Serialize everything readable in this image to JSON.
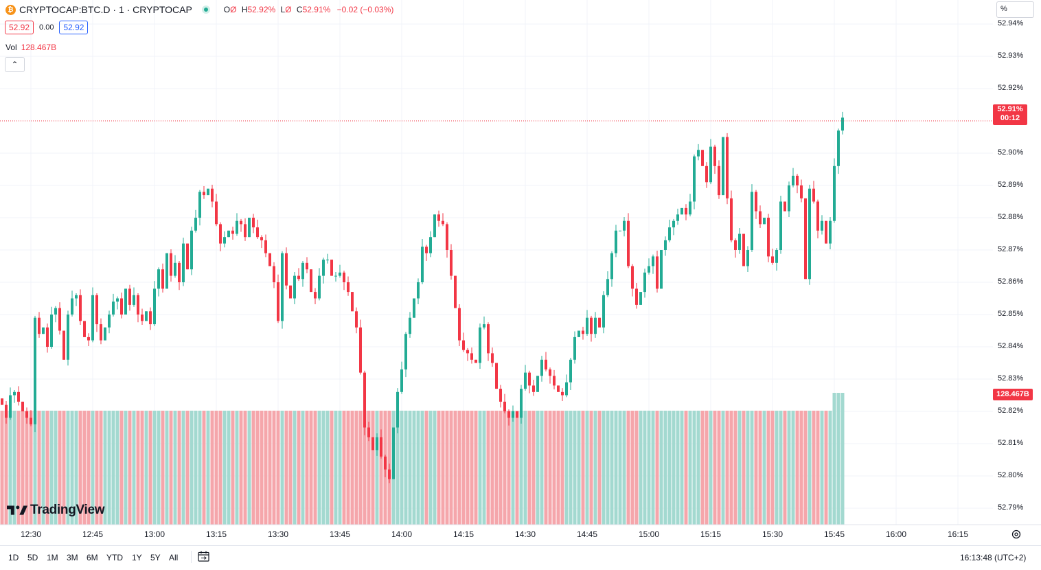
{
  "header": {
    "symbol": "CRYPTOCAP:BTC.D · 1 · CRYPTOCAP",
    "coin_icon": "₿",
    "ohlc": {
      "o_label": "O",
      "o_value": "Ø",
      "h_label": "H",
      "h_value": "52.92%",
      "l_label": "L",
      "l_value": "Ø",
      "c_label": "C",
      "c_value": "52.91%",
      "change": "−0.02 (−0.03%)"
    },
    "bid": "52.92",
    "spread": "0.00",
    "ask": "52.92",
    "vol_label": "Vol",
    "vol_value": "128.467B"
  },
  "scale_button": "%",
  "price_axis": {
    "labels": [
      "52.94%",
      "52.93%",
      "52.92%",
      "52.90%",
      "52.89%",
      "52.88%",
      "52.87%",
      "52.86%",
      "52.85%",
      "52.84%",
      "52.83%",
      "52.82%",
      "52.81%",
      "52.80%",
      "52.79%"
    ]
  },
  "last_price_tag": {
    "price": "52.91%",
    "countdown": "00:12"
  },
  "volume_tag": "128.467B",
  "time_axis": [
    "12:30",
    "12:45",
    "13:00",
    "13:15",
    "13:30",
    "13:45",
    "14:00",
    "14:15",
    "14:30",
    "14:45",
    "15:00",
    "15:15",
    "15:30",
    "15:45",
    "16:00",
    "16:15"
  ],
  "timeframes": [
    "1D",
    "5D",
    "1M",
    "3M",
    "6M",
    "YTD",
    "1Y",
    "5Y",
    "All"
  ],
  "clock": "16:13:48 (UTC+2)",
  "brand": "TradingView",
  "colors": {
    "up": "#22ab94",
    "down": "#f23645",
    "vol_up": "#a3d9d0",
    "vol_down": "#f5a6ab"
  },
  "chart_data": {
    "type": "candlestick",
    "x_start": "12:24",
    "interval": "1 min",
    "ylim": [
      52.785,
      52.945
    ],
    "last_price": 52.91,
    "closes": [
      52.822,
      52.818,
      52.825,
      52.826,
      52.823,
      52.82,
      52.818,
      52.816,
      52.849,
      52.844,
      52.846,
      52.84,
      52.85,
      52.852,
      52.845,
      52.836,
      52.85,
      52.855,
      52.856,
      52.848,
      52.843,
      52.842,
      52.856,
      52.847,
      52.842,
      52.846,
      52.85,
      52.854,
      52.855,
      52.85,
      52.858,
      52.853,
      52.856,
      52.85,
      52.848,
      52.851,
      52.847,
      52.858,
      52.864,
      52.858,
      52.869,
      52.862,
      52.866,
      52.86,
      52.872,
      52.864,
      52.876,
      52.88,
      52.888,
      52.887,
      52.889,
      52.885,
      52.878,
      52.872,
      52.874,
      52.876,
      52.875,
      52.879,
      52.878,
      52.874,
      52.88,
      52.877,
      52.874,
      52.873,
      52.869,
      52.865,
      52.86,
      52.848,
      52.869,
      52.859,
      52.855,
      52.862,
      52.861,
      52.866,
      52.864,
      52.857,
      52.855,
      52.862,
      52.867,
      52.867,
      52.862,
      52.862,
      52.863,
      52.86,
      52.857,
      52.851,
      52.846,
      52.832,
      52.815,
      52.812,
      52.808,
      52.812,
      52.806,
      52.802,
      52.799,
      52.815,
      52.826,
      52.833,
      52.844,
      52.849,
      52.855,
      52.86,
      52.871,
      52.869,
      52.874,
      52.881,
      52.879,
      52.878,
      52.87,
      52.862,
      52.852,
      52.842,
      52.839,
      52.838,
      52.836,
      52.835,
      52.846,
      52.847,
      52.838,
      52.835,
      52.827,
      52.823,
      52.82,
      52.818,
      52.82,
      52.818,
      52.827,
      52.832,
      52.828,
      52.826,
      52.831,
      52.836,
      52.833,
      52.831,
      52.828,
      52.826,
      52.825,
      52.829,
      52.836,
      52.843,
      52.845,
      52.844,
      52.849,
      52.844,
      52.849,
      52.846,
      52.856,
      52.861,
      52.869,
      52.876,
      52.876,
      52.879,
      52.865,
      52.858,
      52.853,
      52.857,
      52.863,
      52.865,
      52.868,
      52.858,
      52.87,
      52.873,
      52.877,
      52.879,
      52.881,
      52.883,
      52.881,
      52.885,
      52.899,
      52.901,
      52.896,
      52.891,
      52.902,
      52.896,
      52.887,
      52.905,
      52.886,
      52.873,
      52.87,
      52.875,
      52.865,
      52.87,
      52.888,
      52.882,
      52.878,
      52.88,
      52.868,
      52.866,
      52.87,
      52.885,
      52.882,
      52.89,
      52.893,
      52.89,
      52.886,
      52.861,
      52.889,
      52.885,
      52.876,
      52.879,
      52.872,
      52.879,
      52.896,
      52.907,
      52.911
    ]
  }
}
